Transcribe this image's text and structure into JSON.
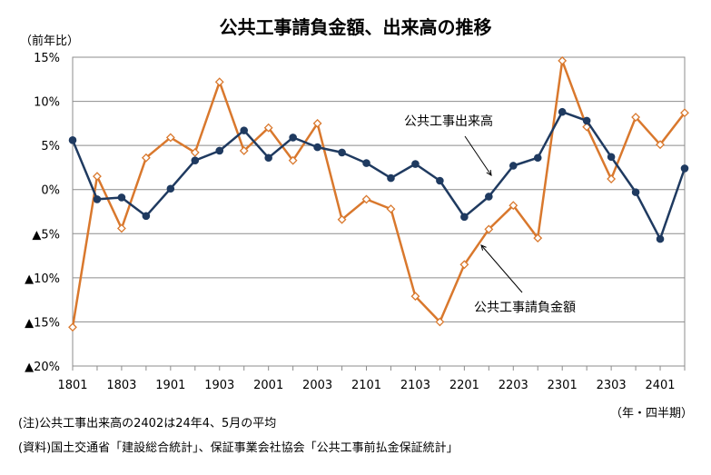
{
  "chart_data": {
    "type": "line",
    "title": "公共工事請負金額、出来高の推移",
    "ylabel": "（前年比）",
    "xlabel": "（年・四半期）",
    "ylim": [
      -20,
      15
    ],
    "yticks": [
      15,
      10,
      5,
      0,
      -5,
      -10,
      -15,
      -20
    ],
    "ytick_labels": [
      "15%",
      "10%",
      "5%",
      "0%",
      "▲5%",
      "▲10%",
      "▲15%",
      "▲20%"
    ],
    "grid": true,
    "x": [
      "1801",
      "1802",
      "1803",
      "1804",
      "1901",
      "1902",
      "1903",
      "1904",
      "2001",
      "2002",
      "2003",
      "2004",
      "2101",
      "2102",
      "2103",
      "2104",
      "2201",
      "2202",
      "2203",
      "2204",
      "2301",
      "2302",
      "2303",
      "2304",
      "2401",
      "2402"
    ],
    "xtick_labels": [
      "1801",
      "1803",
      "1901",
      "1903",
      "2001",
      "2003",
      "2101",
      "2103",
      "2201",
      "2203",
      "2301",
      "2303",
      "2401"
    ],
    "series": [
      {
        "name": "公共工事出来高",
        "color": "#1f3a60",
        "marker": "circle",
        "values": [
          5.6,
          -1.1,
          -0.9,
          -3.0,
          0.1,
          3.3,
          4.4,
          6.7,
          3.6,
          5.9,
          4.8,
          4.2,
          3.0,
          1.3,
          2.9,
          1.0,
          -3.1,
          -0.8,
          2.7,
          3.6,
          8.8,
          7.8,
          3.7,
          -0.3,
          -5.6,
          2.4
        ]
      },
      {
        "name": "公共工事請負金額",
        "color": "#d9782d",
        "marker": "diamond",
        "values": [
          -15.6,
          1.5,
          -4.4,
          3.6,
          5.9,
          4.2,
          12.2,
          4.4,
          7.0,
          3.3,
          7.5,
          -3.4,
          -1.1,
          -2.2,
          -12.1,
          -15.0,
          -8.5,
          -4.5,
          -1.8,
          -5.5,
          14.6,
          7.1,
          1.2,
          8.2,
          5.1,
          8.7
        ]
      }
    ],
    "annotations": [
      {
        "text": "公共工事出来高",
        "series": 0
      },
      {
        "text": "公共工事請負金額",
        "series": 1
      }
    ]
  },
  "notes": [
    "(注)公共工事出来高の2402は24年4、5月の平均",
    "(資料)国土交通省「建設総合統計」、保証事業会社協会「公共工事前払金保証統計」"
  ]
}
